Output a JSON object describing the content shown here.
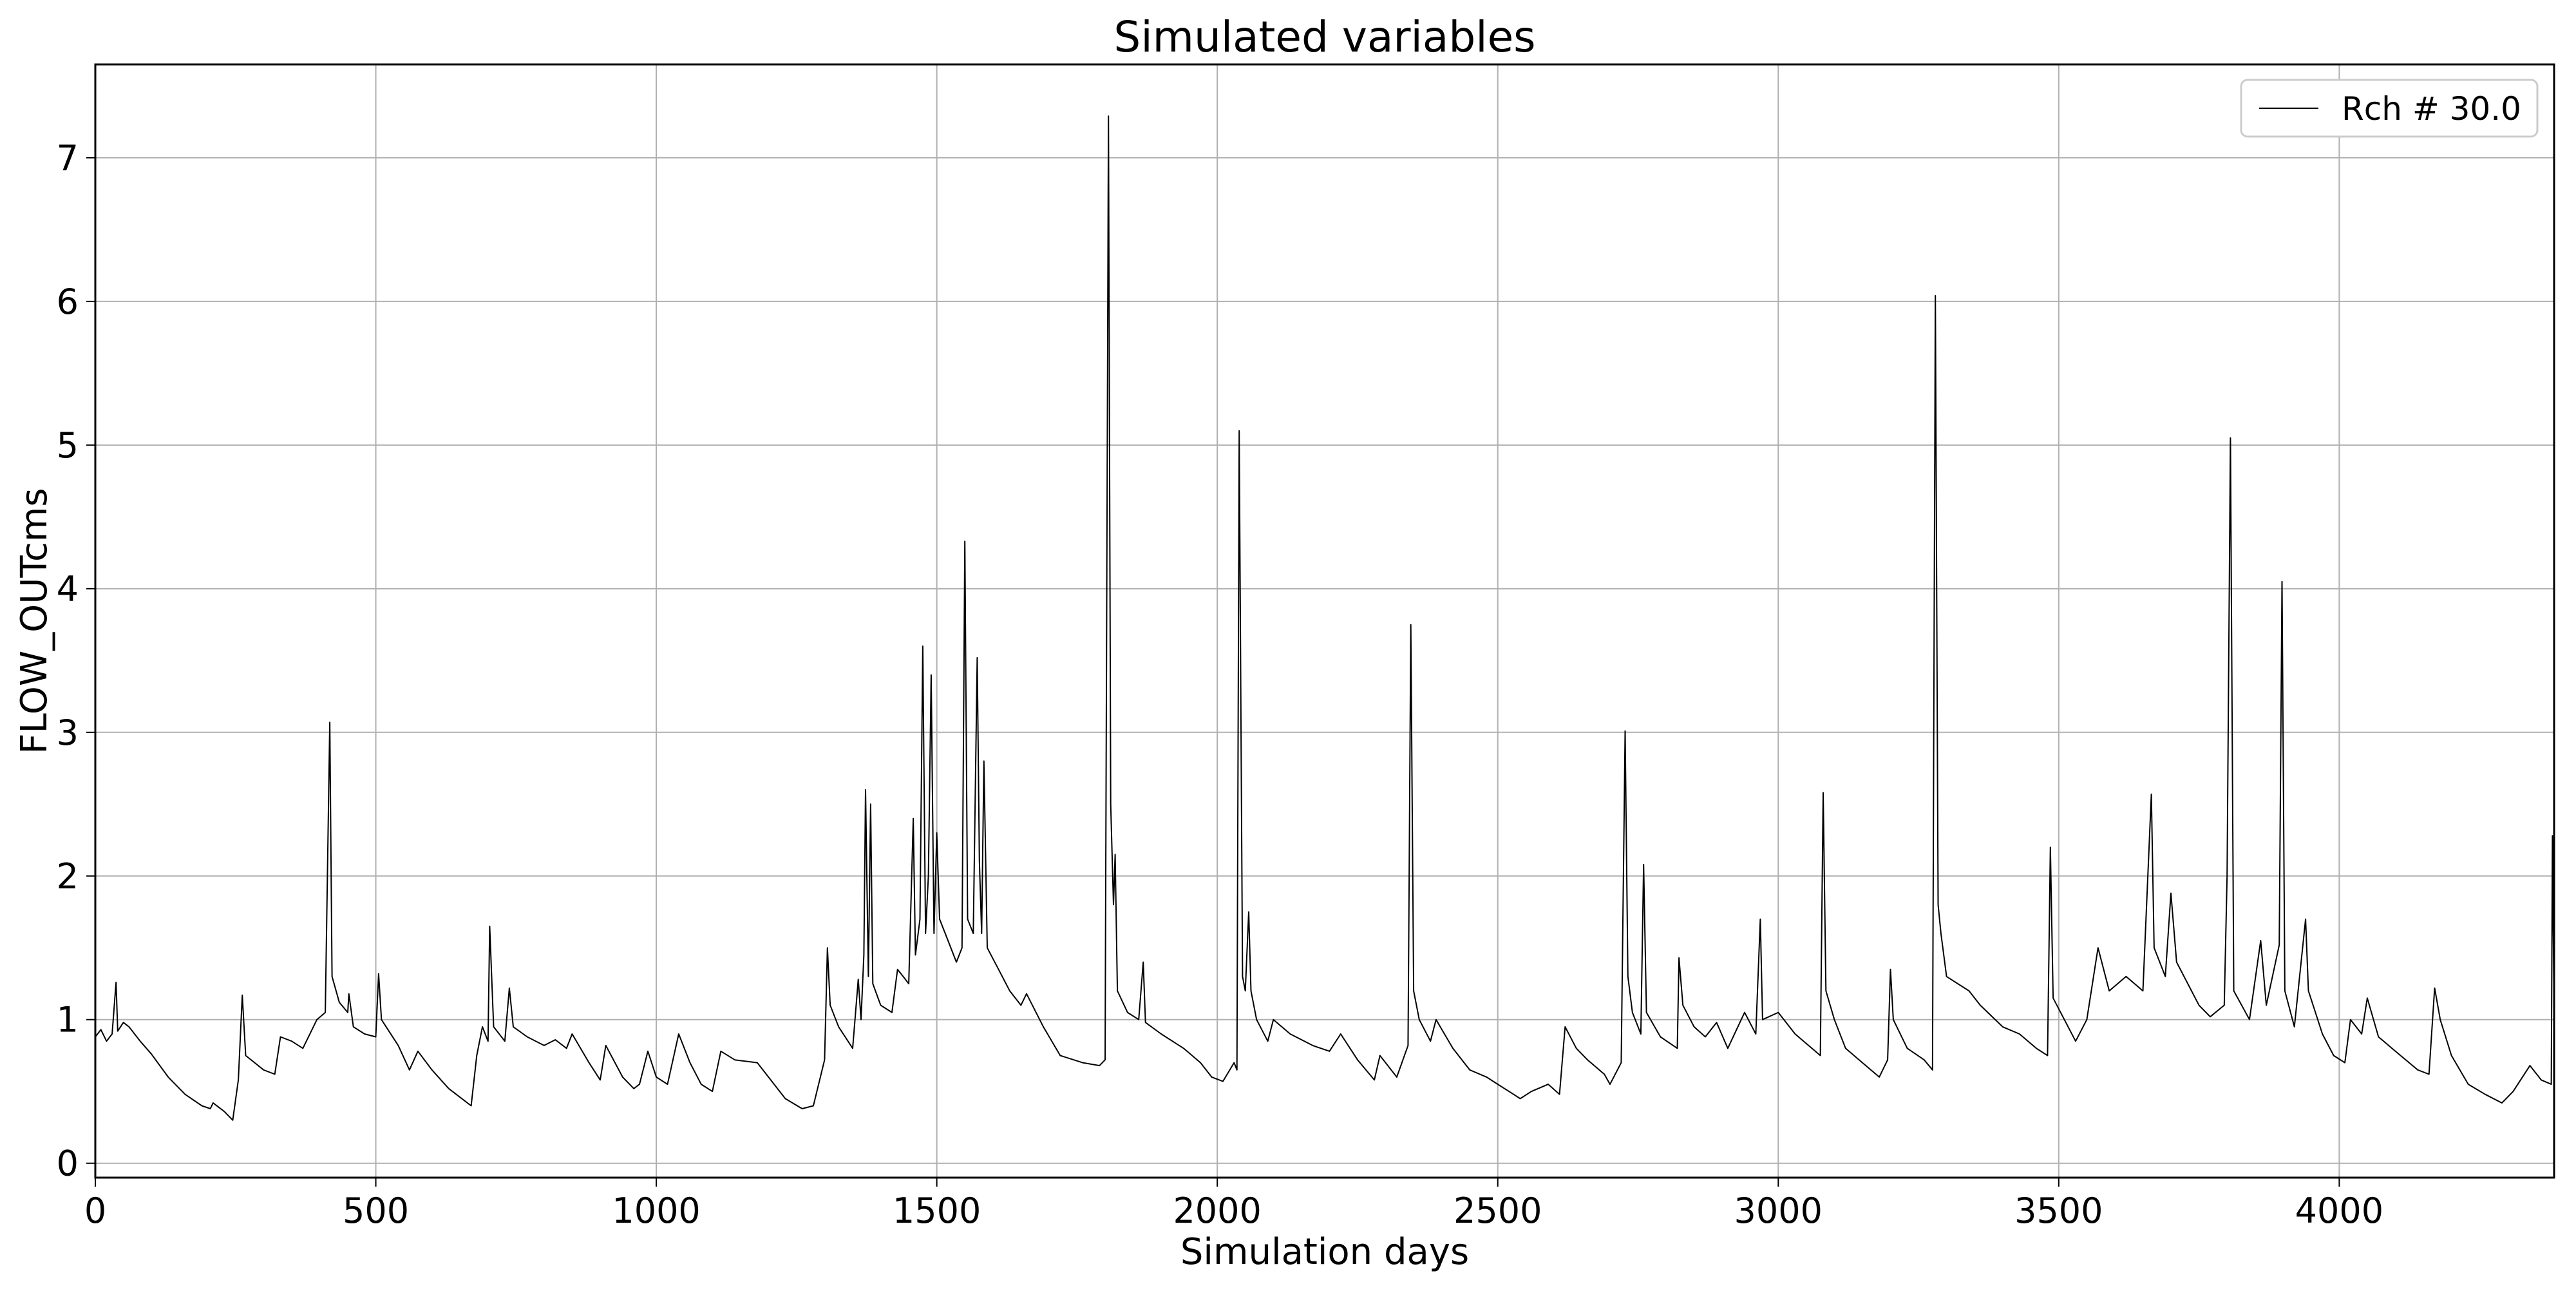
{
  "chart_data": {
    "type": "line",
    "title": "Simulated variables",
    "xlabel": "Simulation days",
    "ylabel": "FLOW_OUTcms",
    "xlim": [
      0,
      4383
    ],
    "ylim": [
      -0.1,
      7.65
    ],
    "xticks": [
      0,
      500,
      1000,
      1500,
      2000,
      2500,
      3000,
      3500,
      4000
    ],
    "yticks": [
      0,
      1,
      2,
      3,
      4,
      5,
      6,
      7
    ],
    "grid": true,
    "legend_position": "top-right",
    "series": [
      {
        "name": "Rch # 30.0",
        "color": "#000000",
        "points": [
          [
            0,
            0.88
          ],
          [
            10,
            0.93
          ],
          [
            20,
            0.85
          ],
          [
            30,
            0.9
          ],
          [
            37,
            1.26
          ],
          [
            40,
            0.92
          ],
          [
            50,
            0.98
          ],
          [
            60,
            0.95
          ],
          [
            80,
            0.85
          ],
          [
            100,
            0.76
          ],
          [
            130,
            0.6
          ],
          [
            160,
            0.48
          ],
          [
            190,
            0.4
          ],
          [
            205,
            0.38
          ],
          [
            210,
            0.42
          ],
          [
            230,
            0.36
          ],
          [
            245,
            0.3
          ],
          [
            255,
            0.58
          ],
          [
            262,
            1.17
          ],
          [
            268,
            0.75
          ],
          [
            300,
            0.65
          ],
          [
            320,
            0.62
          ],
          [
            330,
            0.88
          ],
          [
            350,
            0.85
          ],
          [
            370,
            0.8
          ],
          [
            395,
            1.0
          ],
          [
            410,
            1.05
          ],
          [
            418,
            3.07
          ],
          [
            422,
            1.3
          ],
          [
            435,
            1.12
          ],
          [
            450,
            1.05
          ],
          [
            452,
            1.18
          ],
          [
            460,
            0.95
          ],
          [
            480,
            0.9
          ],
          [
            500,
            0.88
          ],
          [
            505,
            1.32
          ],
          [
            510,
            1.0
          ],
          [
            540,
            0.82
          ],
          [
            560,
            0.65
          ],
          [
            575,
            0.78
          ],
          [
            600,
            0.65
          ],
          [
            630,
            0.52
          ],
          [
            660,
            0.43
          ],
          [
            670,
            0.4
          ],
          [
            680,
            0.75
          ],
          [
            690,
            0.95
          ],
          [
            700,
            0.85
          ],
          [
            703,
            1.65
          ],
          [
            710,
            0.95
          ],
          [
            730,
            0.85
          ],
          [
            738,
            1.22
          ],
          [
            745,
            0.95
          ],
          [
            770,
            0.88
          ],
          [
            800,
            0.82
          ],
          [
            820,
            0.86
          ],
          [
            840,
            0.8
          ],
          [
            850,
            0.9
          ],
          [
            880,
            0.7
          ],
          [
            900,
            0.58
          ],
          [
            910,
            0.82
          ],
          [
            940,
            0.6
          ],
          [
            960,
            0.52
          ],
          [
            970,
            0.55
          ],
          [
            985,
            0.78
          ],
          [
            1000,
            0.6
          ],
          [
            1020,
            0.55
          ],
          [
            1040,
            0.9
          ],
          [
            1060,
            0.7
          ],
          [
            1080,
            0.55
          ],
          [
            1100,
            0.5
          ],
          [
            1115,
            0.78
          ],
          [
            1140,
            0.72
          ],
          [
            1180,
            0.7
          ],
          [
            1200,
            0.6
          ],
          [
            1230,
            0.45
          ],
          [
            1260,
            0.38
          ],
          [
            1280,
            0.4
          ],
          [
            1300,
            0.72
          ],
          [
            1305,
            1.5
          ],
          [
            1310,
            1.1
          ],
          [
            1325,
            0.95
          ],
          [
            1350,
            0.8
          ],
          [
            1360,
            1.28
          ],
          [
            1365,
            1.0
          ],
          [
            1370,
            1.45
          ],
          [
            1373,
            2.6
          ],
          [
            1378,
            1.3
          ],
          [
            1382,
            2.5
          ],
          [
            1386,
            1.25
          ],
          [
            1400,
            1.1
          ],
          [
            1420,
            1.05
          ],
          [
            1430,
            1.35
          ],
          [
            1450,
            1.25
          ],
          [
            1458,
            2.4
          ],
          [
            1462,
            1.45
          ],
          [
            1470,
            1.7
          ],
          [
            1475,
            3.6
          ],
          [
            1480,
            1.6
          ],
          [
            1485,
            2.0
          ],
          [
            1490,
            3.4
          ],
          [
            1495,
            1.6
          ],
          [
            1500,
            2.3
          ],
          [
            1505,
            1.7
          ],
          [
            1520,
            1.55
          ],
          [
            1535,
            1.4
          ],
          [
            1545,
            1.5
          ],
          [
            1550,
            4.33
          ],
          [
            1555,
            1.7
          ],
          [
            1565,
            1.6
          ],
          [
            1572,
            3.52
          ],
          [
            1576,
            2.1
          ],
          [
            1580,
            1.6
          ],
          [
            1584,
            2.8
          ],
          [
            1590,
            1.5
          ],
          [
            1610,
            1.35
          ],
          [
            1630,
            1.2
          ],
          [
            1650,
            1.1
          ],
          [
            1660,
            1.18
          ],
          [
            1690,
            0.95
          ],
          [
            1720,
            0.75
          ],
          [
            1760,
            0.7
          ],
          [
            1790,
            0.68
          ],
          [
            1800,
            0.72
          ],
          [
            1806,
            7.29
          ],
          [
            1810,
            2.5
          ],
          [
            1815,
            1.8
          ],
          [
            1818,
            2.15
          ],
          [
            1822,
            1.2
          ],
          [
            1840,
            1.05
          ],
          [
            1860,
            1.0
          ],
          [
            1868,
            1.4
          ],
          [
            1872,
            0.98
          ],
          [
            1900,
            0.9
          ],
          [
            1940,
            0.8
          ],
          [
            1970,
            0.7
          ],
          [
            1990,
            0.6
          ],
          [
            2010,
            0.57
          ],
          [
            2030,
            0.7
          ],
          [
            2035,
            0.65
          ],
          [
            2039,
            5.1
          ],
          [
            2045,
            1.3
          ],
          [
            2050,
            1.2
          ],
          [
            2056,
            1.75
          ],
          [
            2060,
            1.2
          ],
          [
            2070,
            1.0
          ],
          [
            2090,
            0.85
          ],
          [
            2100,
            1.0
          ],
          [
            2130,
            0.9
          ],
          [
            2170,
            0.82
          ],
          [
            2200,
            0.78
          ],
          [
            2220,
            0.9
          ],
          [
            2250,
            0.72
          ],
          [
            2280,
            0.58
          ],
          [
            2290,
            0.75
          ],
          [
            2320,
            0.6
          ],
          [
            2340,
            0.82
          ],
          [
            2345,
            3.75
          ],
          [
            2350,
            1.2
          ],
          [
            2360,
            1.0
          ],
          [
            2380,
            0.85
          ],
          [
            2390,
            1.0
          ],
          [
            2420,
            0.8
          ],
          [
            2450,
            0.65
          ],
          [
            2480,
            0.6
          ],
          [
            2500,
            0.55
          ],
          [
            2520,
            0.5
          ],
          [
            2540,
            0.45
          ],
          [
            2560,
            0.5
          ],
          [
            2590,
            0.55
          ],
          [
            2610,
            0.48
          ],
          [
            2620,
            0.95
          ],
          [
            2640,
            0.8
          ],
          [
            2660,
            0.72
          ],
          [
            2690,
            0.62
          ],
          [
            2700,
            0.55
          ],
          [
            2720,
            0.7
          ],
          [
            2727,
            3.01
          ],
          [
            2732,
            1.3
          ],
          [
            2740,
            1.05
          ],
          [
            2755,
            0.9
          ],
          [
            2760,
            2.08
          ],
          [
            2765,
            1.05
          ],
          [
            2790,
            0.88
          ],
          [
            2820,
            0.8
          ],
          [
            2823,
            1.43
          ],
          [
            2830,
            1.1
          ],
          [
            2850,
            0.95
          ],
          [
            2870,
            0.88
          ],
          [
            2890,
            0.98
          ],
          [
            2910,
            0.8
          ],
          [
            2940,
            1.05
          ],
          [
            2960,
            0.9
          ],
          [
            2968,
            1.7
          ],
          [
            2972,
            1.0
          ],
          [
            3000,
            1.05
          ],
          [
            3030,
            0.9
          ],
          [
            3060,
            0.8
          ],
          [
            3075,
            0.75
          ],
          [
            3080,
            2.58
          ],
          [
            3085,
            1.2
          ],
          [
            3100,
            1.0
          ],
          [
            3120,
            0.8
          ],
          [
            3150,
            0.7
          ],
          [
            3180,
            0.6
          ],
          [
            3195,
            0.72
          ],
          [
            3200,
            1.35
          ],
          [
            3205,
            1.0
          ],
          [
            3230,
            0.8
          ],
          [
            3260,
            0.72
          ],
          [
            3275,
            0.65
          ],
          [
            3280,
            6.04
          ],
          [
            3285,
            1.8
          ],
          [
            3290,
            1.6
          ],
          [
            3300,
            1.3
          ],
          [
            3320,
            1.25
          ],
          [
            3340,
            1.2
          ],
          [
            3360,
            1.1
          ],
          [
            3400,
            0.95
          ],
          [
            3430,
            0.9
          ],
          [
            3460,
            0.8
          ],
          [
            3480,
            0.75
          ],
          [
            3485,
            2.2
          ],
          [
            3490,
            1.15
          ],
          [
            3510,
            1.0
          ],
          [
            3530,
            0.85
          ],
          [
            3550,
            1.0
          ],
          [
            3560,
            1.25
          ],
          [
            3570,
            1.5
          ],
          [
            3590,
            1.2
          ],
          [
            3620,
            1.3
          ],
          [
            3650,
            1.2
          ],
          [
            3665,
            2.57
          ],
          [
            3670,
            1.5
          ],
          [
            3690,
            1.3
          ],
          [
            3700,
            1.88
          ],
          [
            3710,
            1.4
          ],
          [
            3730,
            1.25
          ],
          [
            3750,
            1.1
          ],
          [
            3770,
            1.02
          ],
          [
            3795,
            1.1
          ],
          [
            3800,
            2.0
          ],
          [
            3806,
            5.05
          ],
          [
            3812,
            1.2
          ],
          [
            3840,
            1.0
          ],
          [
            3860,
            1.55
          ],
          [
            3870,
            1.1
          ],
          [
            3893,
            1.52
          ],
          [
            3898,
            4.05
          ],
          [
            3903,
            1.2
          ],
          [
            3920,
            0.95
          ],
          [
            3940,
            1.7
          ],
          [
            3945,
            1.2
          ],
          [
            3970,
            0.9
          ],
          [
            3990,
            0.75
          ],
          [
            4010,
            0.7
          ],
          [
            4020,
            1.0
          ],
          [
            4040,
            0.9
          ],
          [
            4050,
            1.15
          ],
          [
            4070,
            0.88
          ],
          [
            4100,
            0.78
          ],
          [
            4140,
            0.65
          ],
          [
            4160,
            0.62
          ],
          [
            4170,
            1.22
          ],
          [
            4180,
            1.0
          ],
          [
            4200,
            0.75
          ],
          [
            4230,
            0.55
          ],
          [
            4260,
            0.48
          ],
          [
            4290,
            0.42
          ],
          [
            4310,
            0.5
          ],
          [
            4340,
            0.68
          ],
          [
            4360,
            0.58
          ],
          [
            4378,
            0.55
          ],
          [
            4380,
            2.28
          ],
          [
            4383,
            1.0
          ]
        ]
      }
    ]
  }
}
